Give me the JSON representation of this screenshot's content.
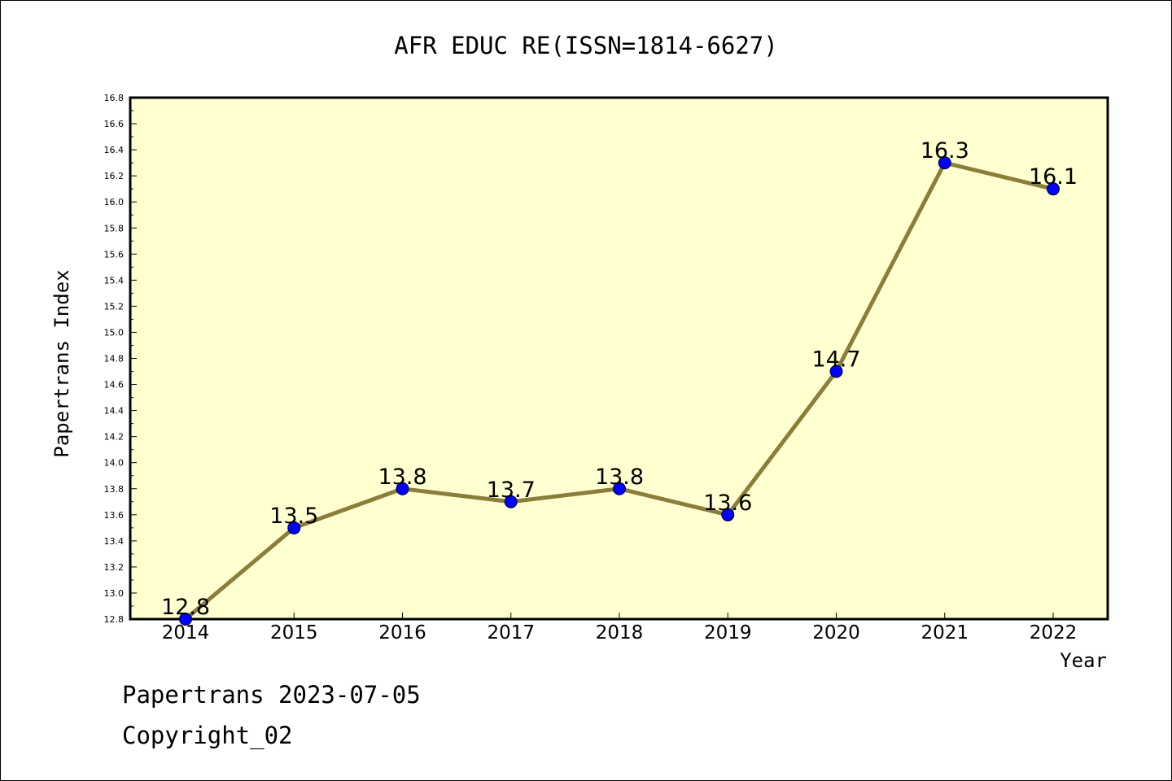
{
  "chart_data": {
    "type": "line",
    "title": "AFR EDUC RE(ISSN=1814-6627)",
    "xlabel": "Year",
    "ylabel": "Papertrans Index",
    "categories": [
      "2014",
      "2015",
      "2016",
      "2017",
      "2018",
      "2019",
      "2020",
      "2021",
      "2022"
    ],
    "series": [
      {
        "values": [
          12.8,
          13.5,
          13.8,
          13.7,
          13.8,
          13.6,
          14.7,
          16.3,
          16.1
        ]
      }
    ],
    "data_labels": [
      "12.8",
      "13.5",
      "13.8",
      "13.7",
      "13.8",
      "13.6",
      "14.7",
      "16.3",
      "16.1"
    ],
    "ylim": [
      12.8,
      16.8
    ],
    "yticks": [
      "12.8",
      "13.0",
      "13.2",
      "13.4",
      "13.6",
      "13.8",
      "14.0",
      "14.2",
      "14.4",
      "14.6",
      "14.8",
      "15.0",
      "15.2",
      "15.4",
      "15.6",
      "15.8",
      "16.0",
      "16.2",
      "16.4",
      "16.6",
      "16.8"
    ],
    "grid": false,
    "colors": {
      "plot_bg": "#ffffd0",
      "line": "#8b7d3a",
      "marker": "#0000ff"
    }
  },
  "footer": {
    "line1": "Papertrans 2023-07-05",
    "line2": "Copyright_02"
  }
}
